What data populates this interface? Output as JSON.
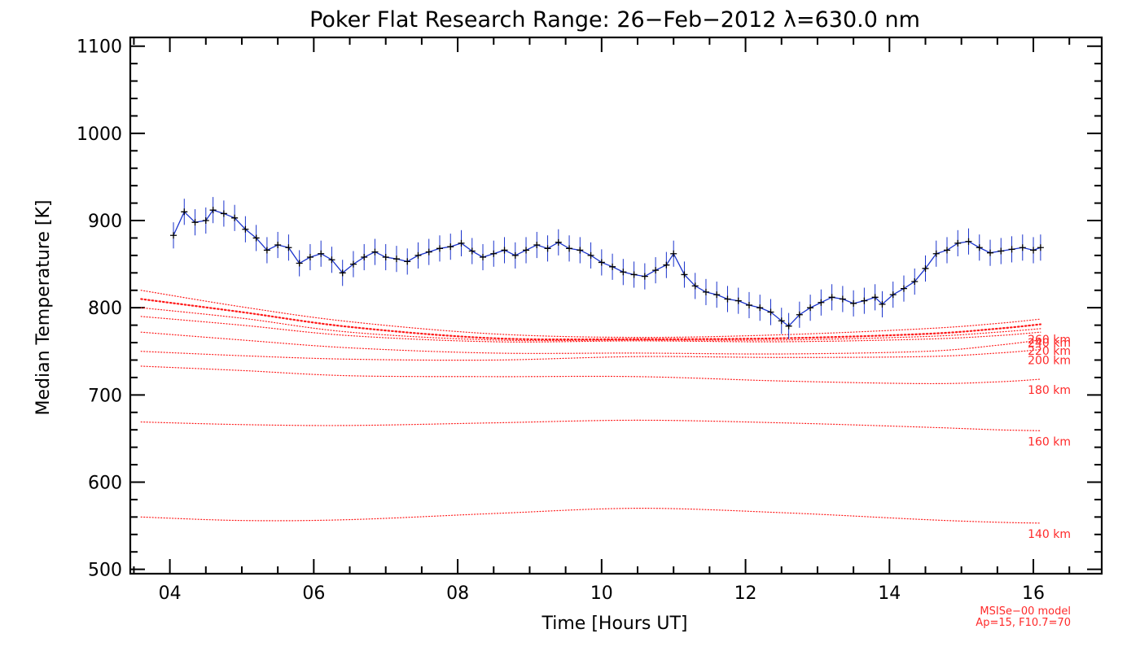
{
  "chart_data": {
    "type": "line",
    "title": "Poker Flat Research Range: 26−Feb−2012 λ=630.0 nm",
    "xlabel": "Time [Hours UT]",
    "ylabel": "Median Temperature [K]",
    "xlim": [
      3.45,
      16.95
    ],
    "ylim": [
      495,
      1110
    ],
    "x_ticks": [
      4,
      6,
      8,
      10,
      12,
      14,
      16
    ],
    "x_tick_labels": [
      "04",
      "06",
      "08",
      "10",
      "12",
      "14",
      "16"
    ],
    "y_ticks": [
      500,
      600,
      700,
      800,
      900,
      1000,
      1100
    ],
    "y_tick_labels": [
      "500",
      "600",
      "700",
      "800",
      "900",
      "1000",
      "1100"
    ],
    "grid": false,
    "model_note": [
      "MSISe−00 model",
      "Ap=15, F10.7=70"
    ],
    "series": [
      {
        "name": "",
        "color": "#1a33cc",
        "marker_color": "#000000",
        "error": 15,
        "x": [
          4.05,
          4.2,
          4.35,
          4.5,
          4.6,
          4.75,
          4.9,
          5.05,
          5.2,
          5.35,
          5.5,
          5.65,
          5.8,
          5.95,
          6.1,
          6.25,
          6.4,
          6.55,
          6.7,
          6.85,
          7.0,
          7.15,
          7.3,
          7.45,
          7.6,
          7.75,
          7.9,
          8.05,
          8.2,
          8.35,
          8.5,
          8.65,
          8.8,
          8.95,
          9.1,
          9.25,
          9.4,
          9.55,
          9.7,
          9.85,
          10.0,
          10.15,
          10.3,
          10.45,
          10.6,
          10.75,
          10.9,
          11.0,
          11.15,
          11.3,
          11.45,
          11.6,
          11.75,
          11.9,
          12.05,
          12.2,
          12.35,
          12.5,
          12.6,
          12.75,
          12.9,
          13.05,
          13.2,
          13.35,
          13.5,
          13.65,
          13.8,
          13.9,
          14.05,
          14.2,
          14.35,
          14.5,
          14.65,
          14.8,
          14.95,
          15.1,
          15.25,
          15.4,
          15.55,
          15.7,
          15.85,
          16.0,
          16.1
        ],
        "y": [
          883,
          910,
          898,
          900,
          912,
          908,
          903,
          890,
          880,
          866,
          872,
          869,
          851,
          858,
          862,
          855,
          840,
          850,
          858,
          864,
          858,
          856,
          853,
          860,
          864,
          868,
          870,
          874,
          865,
          858,
          862,
          866,
          860,
          866,
          872,
          868,
          875,
          868,
          866,
          860,
          852,
          847,
          841,
          838,
          836,
          843,
          849,
          862,
          838,
          825,
          818,
          815,
          810,
          808,
          803,
          800,
          795,
          785,
          779,
          792,
          800,
          806,
          812,
          810,
          805,
          808,
          812,
          804,
          815,
          822,
          830,
          845,
          862,
          866,
          874,
          876,
          869,
          863,
          865,
          867,
          869,
          866,
          869
        ]
      }
    ],
    "model_curves": [
      {
        "label": "",
        "x": [
          3.6,
          5.0,
          6.5,
          8.5,
          10.5,
          12.5,
          14.5,
          15.5,
          16.1
        ],
        "y": [
          820,
          801,
          784,
          770,
          766,
          769,
          776,
          782,
          787
        ]
      },
      {
        "label": "",
        "x": [
          3.6,
          5.0,
          6.5,
          8.5,
          10.5,
          12.5,
          14.5,
          15.5,
          16.1
        ],
        "y": [
          810,
          795,
          778,
          765,
          764,
          765,
          770,
          776,
          781
        ]
      },
      {
        "label": "260 km",
        "x": [
          3.6,
          5.0,
          6.5,
          8.5,
          10.5,
          12.5,
          14.5,
          15.5,
          16.1
        ],
        "y": [
          800,
          788,
          772,
          763,
          763,
          763,
          767,
          772,
          776
        ]
      },
      {
        "label": "240 km",
        "x": [
          3.6,
          5.0,
          6.5,
          8.5,
          10.5,
          12.5,
          14.5,
          15.5,
          16.1
        ],
        "y": [
          790,
          780,
          768,
          761,
          762,
          761,
          764,
          768,
          772
        ]
      },
      {
        "label": "220 km",
        "x": [
          3.6,
          5.0,
          6.5,
          8.5,
          10.5,
          12.5,
          14.5,
          15.5,
          16.1
        ],
        "y": [
          772,
          763,
          754,
          748,
          748,
          747,
          750,
          757,
          763
        ]
      },
      {
        "label": "200 km",
        "x": [
          3.6,
          5.0,
          6.5,
          8.5,
          10.5,
          12.5,
          14.5,
          15.5,
          16.1
        ],
        "y": [
          750,
          745,
          741,
          740,
          744,
          743,
          744,
          748,
          752
        ]
      },
      {
        "label": "180 km",
        "x": [
          3.6,
          5.0,
          6.5,
          8.5,
          10.5,
          12.5,
          14.5,
          15.5,
          16.1
        ],
        "y": [
          733,
          728,
          722,
          721,
          721,
          716,
          713,
          715,
          718
        ]
      },
      {
        "label": "160 km",
        "x": [
          3.6,
          5.0,
          6.5,
          8.5,
          10.5,
          12.5,
          14.5,
          15.5,
          16.1
        ],
        "y": [
          669,
          666,
          665,
          668,
          671,
          668,
          663,
          660,
          659
        ]
      },
      {
        "label": "140 km",
        "x": [
          3.6,
          5.0,
          6.5,
          8.5,
          10.5,
          12.5,
          14.5,
          15.5,
          16.1
        ],
        "y": [
          560,
          556,
          557,
          564,
          570,
          565,
          557,
          554,
          553
        ]
      }
    ]
  }
}
